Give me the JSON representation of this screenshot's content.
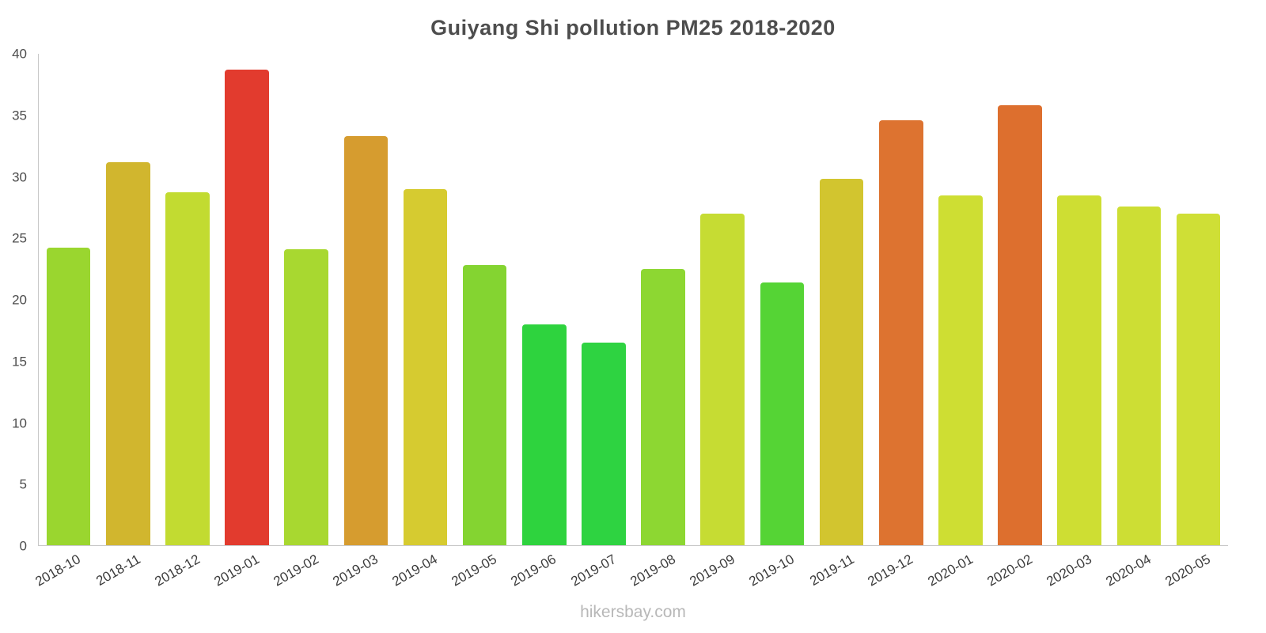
{
  "chart_data": {
    "type": "bar",
    "title": "Guiyang Shi pollution PM25 2018-2020",
    "xlabel": "",
    "ylabel": "",
    "ylim": [
      0,
      40
    ],
    "y_ticks": [
      0,
      5,
      10,
      15,
      20,
      25,
      30,
      35,
      40
    ],
    "grid": false,
    "legend": false,
    "categories": [
      "2018-10",
      "2018-11",
      "2018-12",
      "2019-01",
      "2019-02",
      "2019-03",
      "2019-04",
      "2019-05",
      "2019-06",
      "2019-07",
      "2019-08",
      "2019-09",
      "2019-10",
      "2019-11",
      "2019-12",
      "2020-01",
      "2020-02",
      "2020-03",
      "2020-04",
      "2020-05"
    ],
    "values": [
      24.2,
      31.2,
      28.7,
      38.7,
      24.1,
      33.3,
      29.0,
      22.8,
      18.0,
      16.5,
      22.5,
      27.0,
      21.4,
      29.8,
      34.6,
      28.5,
      35.8,
      28.5,
      27.6,
      27.0
    ],
    "colors": [
      "#9ad62f",
      "#d1b62e",
      "#c2db31",
      "#e23b2e",
      "#a8d830",
      "#d69c2f",
      "#d6cb30",
      "#84d431",
      "#2ed33e",
      "#2ed341",
      "#8dd732",
      "#c6dc33",
      "#55d435",
      "#d2c52f",
      "#dd7330",
      "#cede33",
      "#dd6f2e",
      "#cede33",
      "#cdde34",
      "#cfdf36"
    ]
  },
  "footer": {
    "text": "hikersbay.com"
  }
}
